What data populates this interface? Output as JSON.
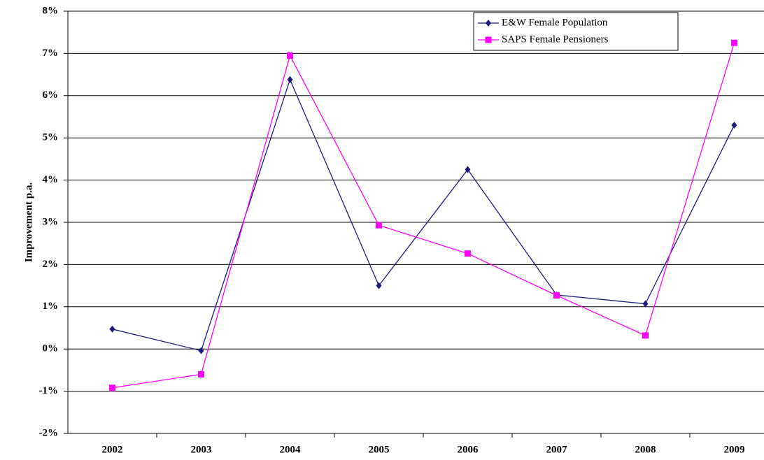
{
  "chart_data": {
    "type": "line",
    "y_label": "Improvement p.a.",
    "categories": [
      "2002",
      "2003",
      "2004",
      "2005",
      "2006",
      "2007",
      "2008",
      "2009"
    ],
    "series": [
      {
        "name": "E&W Female Population",
        "color": "#1a1a80",
        "marker": "diamond",
        "values": [
          0.47,
          -0.04,
          6.38,
          1.5,
          4.25,
          1.28,
          1.07,
          5.3
        ]
      },
      {
        "name": "SAPS Female Pensioners",
        "color": "#ff00ff",
        "marker": "square",
        "values": [
          -0.92,
          -0.6,
          6.95,
          2.93,
          2.26,
          1.27,
          0.32,
          7.25
        ]
      }
    ],
    "ylim": [
      -2,
      8
    ],
    "yticks": [
      {
        "value": -2,
        "label": "-2%"
      },
      {
        "value": -1,
        "label": "-1%"
      },
      {
        "value": 0,
        "label": "0%"
      },
      {
        "value": 1,
        "label": "1%"
      },
      {
        "value": 2,
        "label": "2%"
      },
      {
        "value": 3,
        "label": "3%"
      },
      {
        "value": 4,
        "label": "4%"
      },
      {
        "value": 5,
        "label": "5%"
      },
      {
        "value": 6,
        "label": "6%"
      },
      {
        "value": 7,
        "label": "7%"
      },
      {
        "value": 8,
        "label": "8%"
      }
    ],
    "grid": true,
    "legend": "top-right"
  }
}
